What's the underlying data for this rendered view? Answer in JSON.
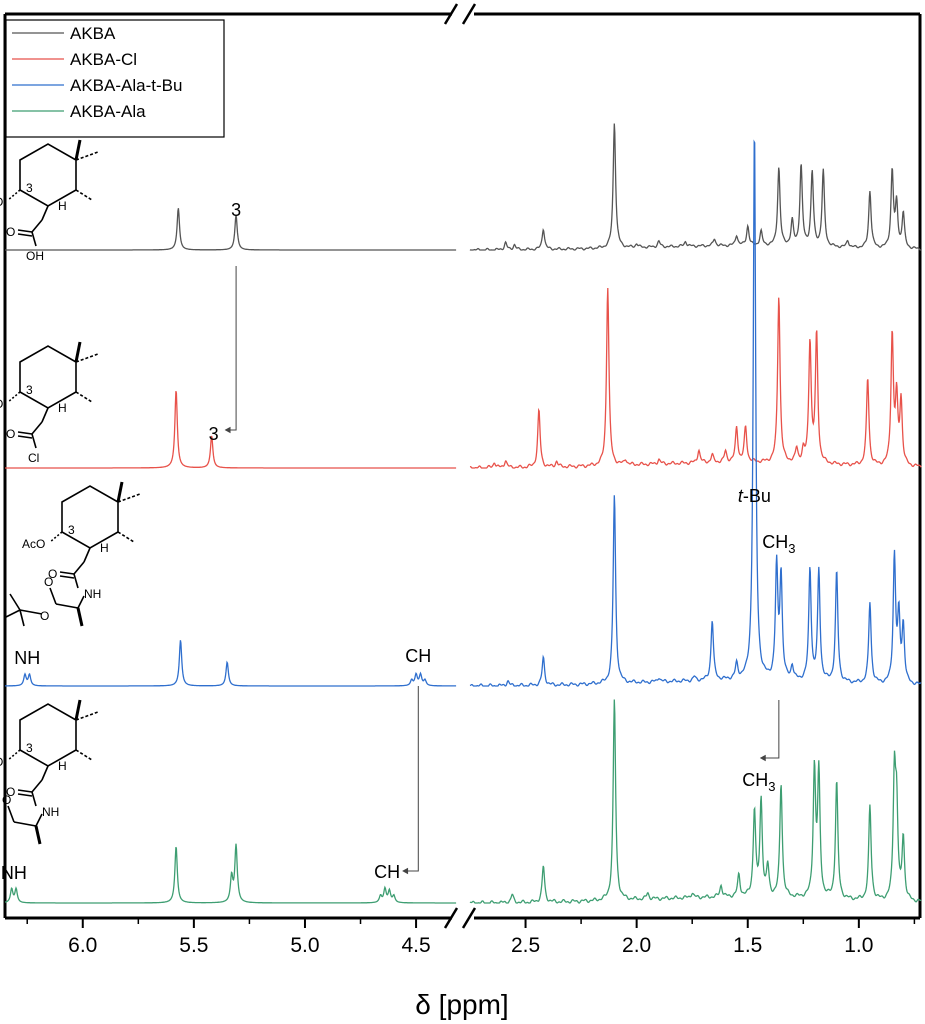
{
  "chart_data": {
    "type": "line",
    "subtype": "stacked 1H NMR spectra with broken x-axis",
    "title": "",
    "xlabel": "δ [ppm]",
    "ylabel": "",
    "x_reversed": true,
    "x_break": {
      "left_segment": [
        6.35,
        4.32
      ],
      "right_segment": [
        2.75,
        0.72
      ]
    },
    "xticks_left": [
      "6.0",
      "5.5",
      "5.0",
      "4.5"
    ],
    "xticks_right": [
      "2.5",
      "2.0",
      "1.5",
      "1.0"
    ],
    "grid": false,
    "legend_position": "top-left",
    "series": [
      {
        "name": "AKBA",
        "color": "#555555",
        "peaks": [
          [
            5.57,
            0.6
          ],
          [
            5.31,
            0.5
          ],
          [
            2.59,
            0.1
          ],
          [
            2.55,
            0.07
          ],
          [
            2.42,
            0.3
          ],
          [
            2.1,
            1.8
          ],
          [
            2.0,
            0.05
          ],
          [
            1.9,
            0.08
          ],
          [
            1.78,
            0.07
          ],
          [
            1.65,
            0.1
          ],
          [
            1.55,
            0.15
          ],
          [
            1.5,
            0.28
          ],
          [
            1.44,
            0.2
          ],
          [
            1.36,
            1.12
          ],
          [
            1.3,
            0.35
          ],
          [
            1.26,
            1.15
          ],
          [
            1.21,
            1.06
          ],
          [
            1.16,
            1.08
          ],
          [
            1.05,
            0.1
          ],
          [
            0.95,
            0.82
          ],
          [
            0.85,
            1.1
          ],
          [
            0.83,
            0.62
          ],
          [
            0.8,
            0.5
          ]
        ]
      },
      {
        "name": "AKBA-Cl",
        "color": "#e8524a",
        "peaks": [
          [
            5.58,
            0.85
          ],
          [
            5.42,
            0.35
          ],
          [
            2.64,
            0.06
          ],
          [
            2.59,
            0.08
          ],
          [
            2.44,
            0.62
          ],
          [
            2.36,
            0.06
          ],
          [
            2.13,
            1.95
          ],
          [
            2.05,
            0.06
          ],
          [
            1.9,
            0.05
          ],
          [
            1.72,
            0.14
          ],
          [
            1.66,
            0.08
          ],
          [
            1.6,
            0.12
          ],
          [
            1.55,
            0.38
          ],
          [
            1.51,
            0.38
          ],
          [
            1.36,
            1.82
          ],
          [
            1.28,
            0.15
          ],
          [
            1.25,
            0.12
          ],
          [
            1.22,
            1.32
          ],
          [
            1.19,
            1.4
          ],
          [
            0.96,
            0.95
          ],
          [
            0.85,
            1.42
          ],
          [
            0.83,
            0.7
          ],
          [
            0.81,
            0.7
          ]
        ]
      },
      {
        "name": "AKBA-Ala-t-Bu",
        "color": "#2f6fce",
        "peaks": [
          [
            6.26,
            0.12
          ],
          [
            6.24,
            0.12
          ],
          [
            5.56,
            0.5
          ],
          [
            5.35,
            0.26
          ],
          [
            4.52,
            0.06
          ],
          [
            4.5,
            0.12
          ],
          [
            4.48,
            0.12
          ],
          [
            4.46,
            0.06
          ],
          [
            2.58,
            0.05
          ],
          [
            2.42,
            0.3
          ],
          [
            2.1,
            2.05
          ],
          [
            1.9,
            0.05
          ],
          [
            1.74,
            0.04
          ],
          [
            1.66,
            0.65
          ],
          [
            1.55,
            0.16
          ],
          [
            1.47,
            6.0
          ],
          [
            1.37,
            1.22
          ],
          [
            1.35,
            1.12
          ],
          [
            1.3,
            0.15
          ],
          [
            1.22,
            1.22
          ],
          [
            1.18,
            1.2
          ],
          [
            1.1,
            1.2
          ],
          [
            0.95,
            0.88
          ],
          [
            0.84,
            1.38
          ],
          [
            0.82,
            0.7
          ],
          [
            0.8,
            0.62
          ]
        ]
      },
      {
        "name": "AKBA-Ala",
        "color": "#3e9e72",
        "peaks": [
          [
            6.32,
            0.14
          ],
          [
            6.3,
            0.14
          ],
          [
            5.58,
            0.58
          ],
          [
            5.33,
            0.26
          ],
          [
            5.31,
            0.58
          ],
          [
            4.66,
            0.07
          ],
          [
            4.64,
            0.14
          ],
          [
            4.62,
            0.12
          ],
          [
            4.6,
            0.07
          ],
          [
            2.56,
            0.08
          ],
          [
            2.42,
            0.37
          ],
          [
            2.1,
            2.05
          ],
          [
            1.95,
            0.06
          ],
          [
            1.75,
            0.05
          ],
          [
            1.62,
            0.12
          ],
          [
            1.54,
            0.22
          ],
          [
            1.47,
            0.88
          ],
          [
            1.44,
            0.98
          ],
          [
            1.41,
            0.3
          ],
          [
            1.35,
            1.16
          ],
          [
            1.2,
            1.3
          ],
          [
            1.18,
            1.26
          ],
          [
            1.1,
            1.2
          ],
          [
            0.95,
            0.96
          ],
          [
            0.84,
            1.25
          ],
          [
            0.83,
            0.9
          ],
          [
            0.8,
            0.64
          ]
        ]
      }
    ],
    "annotations": [
      {
        "text": "3",
        "series": "AKBA",
        "ppm": 5.31
      },
      {
        "text": "3",
        "series": "AKBA-Cl",
        "ppm": 5.42
      },
      {
        "text": "NH",
        "series": "AKBA-Ala-t-Bu",
        "ppm": 6.25
      },
      {
        "text": "CH",
        "series": "AKBA-Ala-t-Bu",
        "ppm": 4.49
      },
      {
        "text": "t-Bu",
        "series": "AKBA-Ala-t-Bu",
        "ppm": 1.47
      },
      {
        "text": "CH3",
        "series": "AKBA-Ala-t-Bu",
        "ppm": 1.36
      },
      {
        "text": "NH",
        "series": "AKBA-Ala",
        "ppm": 6.31
      },
      {
        "text": "CH",
        "series": "AKBA-Ala",
        "ppm": 4.63
      },
      {
        "text": "CH3",
        "series": "AKBA-Ala",
        "ppm": 1.45
      }
    ],
    "structure_labels": {
      "acetoxy": "AcO",
      "position": "3",
      "hydrogen": "H",
      "acid_oxygen": "O",
      "hydroxyl": "OH",
      "chloride": "Cl",
      "amide": "NH",
      "ester_oxygen": "O",
      "acid_hydroxyl": "HO"
    }
  }
}
